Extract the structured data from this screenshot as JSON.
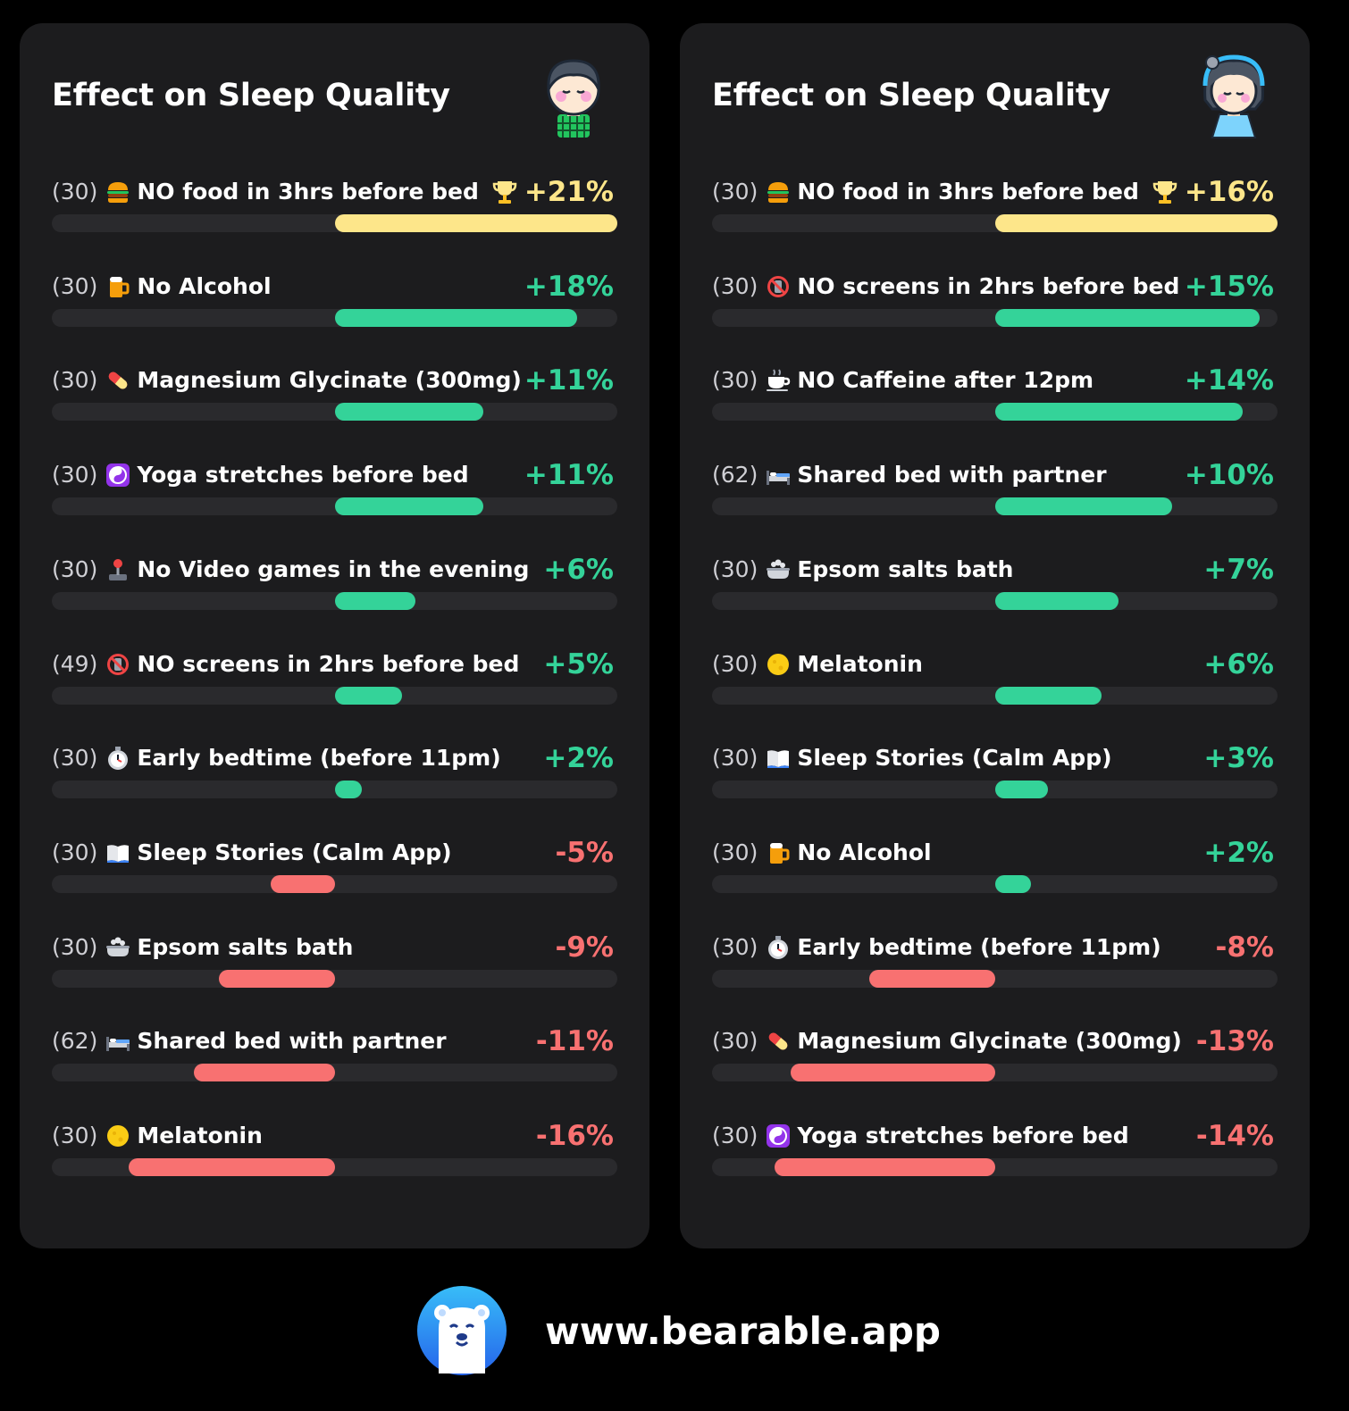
{
  "colors": {
    "top": "#fde68a",
    "positive": "#34d399",
    "negative": "#f87171"
  },
  "footer": {
    "url": "www.bearable.app",
    "logo_icon": "polar-bear-icon"
  },
  "chart_data": [
    {
      "type": "bar",
      "title": "Effect on Sleep Quality",
      "avatar_icon": "man-avatar-icon",
      "xlim": [
        -22,
        21
      ],
      "rows": [
        {
          "count": "(30)",
          "icon": "burger-icon",
          "label": "NO food in 3hrs before bed",
          "value": 21,
          "value_label": "+21%",
          "top": true
        },
        {
          "count": "(30)",
          "icon": "beer-icon",
          "label": "No Alcohol",
          "value": 18,
          "value_label": "+18%"
        },
        {
          "count": "(30)",
          "icon": "pill-icon",
          "label": "Magnesium Glycinate (300mg)",
          "value": 11,
          "value_label": "+11%"
        },
        {
          "count": "(30)",
          "icon": "yin-yang-icon",
          "label": "Yoga stretches before bed",
          "value": 11,
          "value_label": "+11%"
        },
        {
          "count": "(30)",
          "icon": "joystick-icon",
          "label": "No Video games in the evening",
          "value": 6,
          "value_label": "+6%"
        },
        {
          "count": "(49)",
          "icon": "no-phones-icon",
          "label": "NO screens in 2hrs before bed",
          "value": 5,
          "value_label": "+5%"
        },
        {
          "count": "(30)",
          "icon": "stopwatch-icon",
          "label": "Early bedtime (before 11pm)",
          "value": 2,
          "value_label": "+2%"
        },
        {
          "count": "(30)",
          "icon": "book-icon",
          "label": "Sleep Stories (Calm App)",
          "value": -5,
          "value_label": "-5%"
        },
        {
          "count": "(30)",
          "icon": "bathtub-icon",
          "label": "Epsom salts bath",
          "value": -9,
          "value_label": "-9%"
        },
        {
          "count": "(62)",
          "icon": "bed-icon",
          "label": "Shared bed with partner",
          "value": -11,
          "value_label": "-11%"
        },
        {
          "count": "(30)",
          "icon": "moon-icon",
          "label": "Melatonin",
          "value": -16,
          "value_label": "-16%"
        }
      ]
    },
    {
      "type": "bar",
      "title": "Effect on Sleep Quality",
      "avatar_icon": "woman-avatar-icon",
      "xlim": [
        -18,
        16
      ],
      "rows": [
        {
          "count": "(30)",
          "icon": "burger-icon",
          "label": "NO food in 3hrs before bed",
          "value": 16,
          "value_label": "+16%",
          "top": true
        },
        {
          "count": "(30)",
          "icon": "no-phones-icon",
          "label": "NO screens in 2hrs before bed",
          "value": 15,
          "value_label": "+15%"
        },
        {
          "count": "(30)",
          "icon": "coffee-icon",
          "label": "NO Caffeine after 12pm",
          "value": 14,
          "value_label": "+14%"
        },
        {
          "count": "(62)",
          "icon": "bed-icon",
          "label": "Shared bed with partner",
          "value": 10,
          "value_label": "+10%"
        },
        {
          "count": "(30)",
          "icon": "bathtub-icon",
          "label": "Epsom salts bath",
          "value": 7,
          "value_label": "+7%"
        },
        {
          "count": "(30)",
          "icon": "moon-icon",
          "label": "Melatonin",
          "value": 6,
          "value_label": "+6%"
        },
        {
          "count": "(30)",
          "icon": "book-icon",
          "label": "Sleep Stories (Calm App)",
          "value": 3,
          "value_label": "+3%"
        },
        {
          "count": "(30)",
          "icon": "beer-icon",
          "label": "No Alcohol",
          "value": 2,
          "value_label": "+2%"
        },
        {
          "count": "(30)",
          "icon": "stopwatch-icon",
          "label": "Early bedtime (before 11pm)",
          "value": -8,
          "value_label": "-8%"
        },
        {
          "count": "(30)",
          "icon": "pill-icon",
          "label": "Magnesium Glycinate (300mg)",
          "value": -13,
          "value_label": "-13%"
        },
        {
          "count": "(30)",
          "icon": "yin-yang-icon",
          "label": "Yoga stretches before bed",
          "value": -14,
          "value_label": "-14%"
        }
      ]
    }
  ]
}
